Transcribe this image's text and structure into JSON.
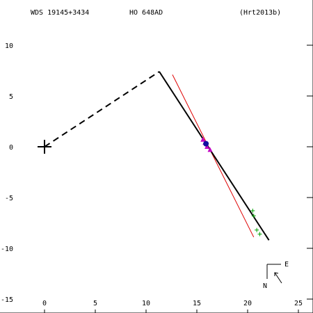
{
  "header": {
    "wds_id": "WDS 19145+3434",
    "discoverer": "HO  648AD",
    "reference": "(Hrt2013b)"
  },
  "compass": {
    "east_label": "E",
    "north_label": "N"
  },
  "chart_data": {
    "type": "scatter",
    "xlim": [
      -4,
      26
    ],
    "ylim": [
      -15,
      13.3
    ],
    "y_axis_reversed": true,
    "grid": false,
    "xticks": [
      0,
      5,
      10,
      15,
      20,
      25
    ],
    "yticks": [
      10,
      5,
      0,
      -5,
      -10,
      -15
    ],
    "primary": [
      0,
      0
    ],
    "dashed_path": [
      [
        0,
        0
      ],
      [
        11.3,
        7.4
      ]
    ],
    "solid_path": [
      [
        11.3,
        7.4
      ],
      [
        22.1,
        -9.2
      ]
    ],
    "red_path": [
      [
        12.6,
        7.1
      ],
      [
        20.6,
        -8.9
      ]
    ],
    "green_points": [
      [
        20.5,
        -6.3
      ],
      [
        20.6,
        -6.8
      ],
      [
        20.9,
        -8.2
      ],
      [
        21.2,
        -8.6
      ]
    ],
    "magenta_points": [
      [
        15.6,
        0.7
      ],
      [
        15.8,
        0.4
      ],
      [
        16.0,
        0.0
      ],
      [
        16.3,
        -0.3
      ]
    ],
    "blue_points": [
      [
        15.9,
        0.3
      ]
    ]
  }
}
